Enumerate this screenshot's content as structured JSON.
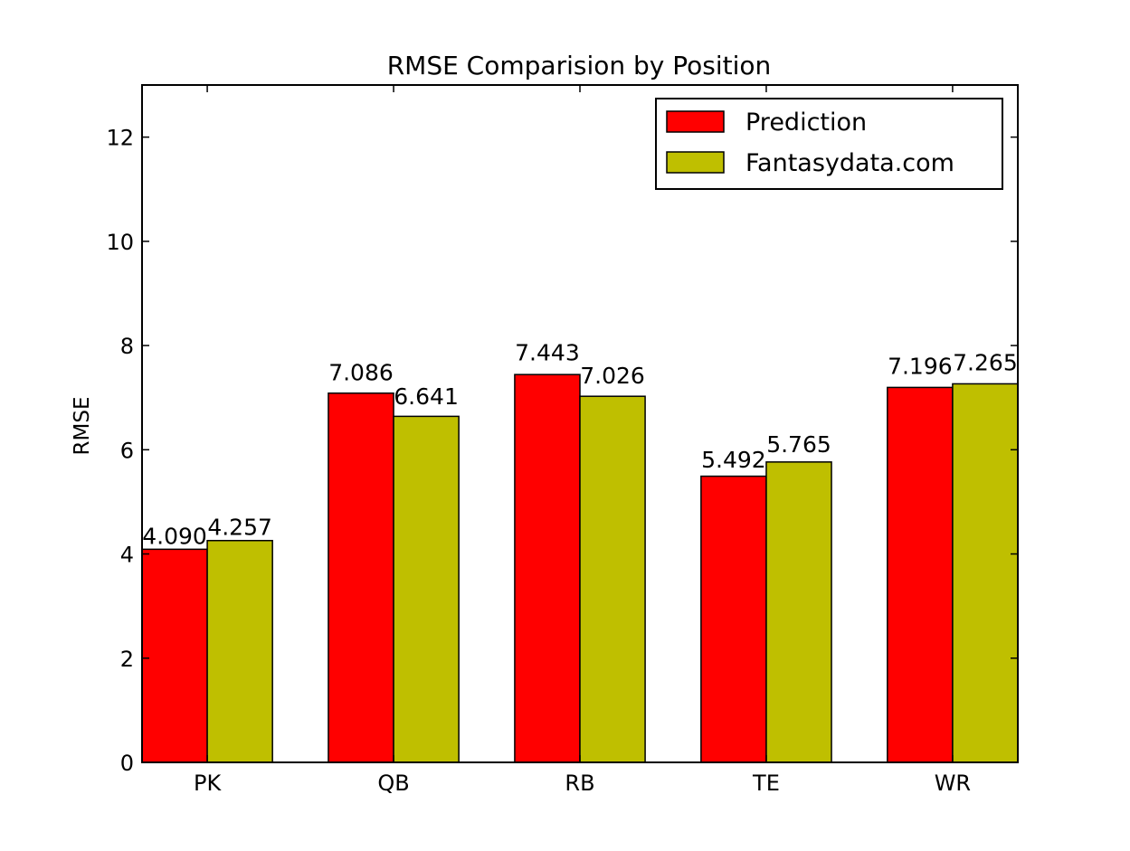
{
  "chart_data": {
    "type": "bar",
    "title": "RMSE Comparision by Position",
    "xlabel": "",
    "ylabel": "RMSE",
    "categories": [
      "PK",
      "QB",
      "RB",
      "TE",
      "WR"
    ],
    "series": [
      {
        "name": "Prediction",
        "color": "#ff0000",
        "values": [
          4.09,
          7.086,
          7.443,
          5.492,
          7.196
        ],
        "labels": [
          "4.090",
          "7.086",
          "7.443",
          "5.492",
          "7.196"
        ]
      },
      {
        "name": "Fantasydata.com",
        "color": "#bfbf00",
        "values": [
          4.257,
          6.641,
          7.026,
          5.765,
          7.265
        ],
        "labels": [
          "4.257",
          "6.641",
          "7.026",
          "5.765",
          "7.265"
        ]
      }
    ],
    "ylim": [
      0,
      13
    ],
    "yticks": [
      0,
      2,
      4,
      6,
      8,
      10,
      12
    ],
    "ytick_labels": [
      "0",
      "2",
      "4",
      "6",
      "8",
      "10",
      "12"
    ],
    "grid": false,
    "legend_position": "top-right"
  }
}
